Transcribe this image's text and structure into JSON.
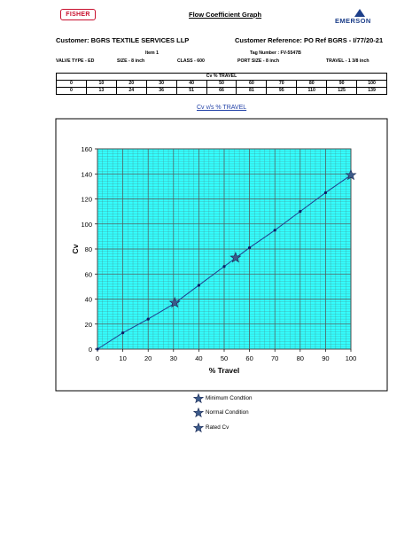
{
  "header": {
    "fisher_logo": "FISHER",
    "emerson_logo": "EMERSON",
    "title": "Flow Coefficient Graph",
    "customer": "Customer: BGRS TEXTILE SERVICES LLP",
    "customer_reference": "Customer Reference: PO Ref BGRS - I/77/20-21",
    "item": "Item 1",
    "tag_number": "Tag Number : FV-5547B",
    "valve_type": "VALVE TYPE - ED",
    "size": "SIZE - 8 inch",
    "class": "CLASS - 600",
    "port_size": "PORT SIZE - 8 inch",
    "travel": "TRAVEL - 1 3/8 inch"
  },
  "table": {
    "title": "Cv % TRAVEL",
    "travel_row": [
      "0",
      "10",
      "20",
      "30",
      "40",
      "50",
      "60",
      "70",
      "80",
      "90",
      "100"
    ],
    "cv_row": [
      "0",
      "13",
      "24",
      "36",
      "51",
      "66",
      "81",
      "95",
      "110",
      "125",
      "139"
    ]
  },
  "chart_data": {
    "type": "line",
    "title": "Cv v/s % TRAVEL",
    "xlabel": "% Travel",
    "ylabel": "Cv",
    "xlim": [
      0,
      100
    ],
    "ylim": [
      0,
      160
    ],
    "xticks": [
      0,
      10,
      20,
      30,
      40,
      50,
      60,
      70,
      80,
      90,
      100
    ],
    "yticks": [
      0,
      20,
      40,
      60,
      80,
      100,
      120,
      140,
      160
    ],
    "grid": true,
    "x": [
      0,
      10,
      20,
      30,
      40,
      50,
      60,
      70,
      80,
      90,
      100
    ],
    "y": [
      0,
      13,
      24,
      36,
      51,
      66,
      81,
      95,
      110,
      125,
      139
    ],
    "markers": [
      {
        "name": "Minimum Condtion",
        "x": 30.5,
        "y": 37
      },
      {
        "name": "Normal Condition",
        "x": 54.5,
        "y": 73
      },
      {
        "name": "Rated Cv",
        "x": 100,
        "y": 139
      }
    ],
    "colors": {
      "plot_bg": "#33ffff",
      "line": "#1f3f8f",
      "point": "#0c1d66",
      "star": "#3c5a8a",
      "grid": "#555555"
    },
    "legend_position": "bottom-center"
  }
}
